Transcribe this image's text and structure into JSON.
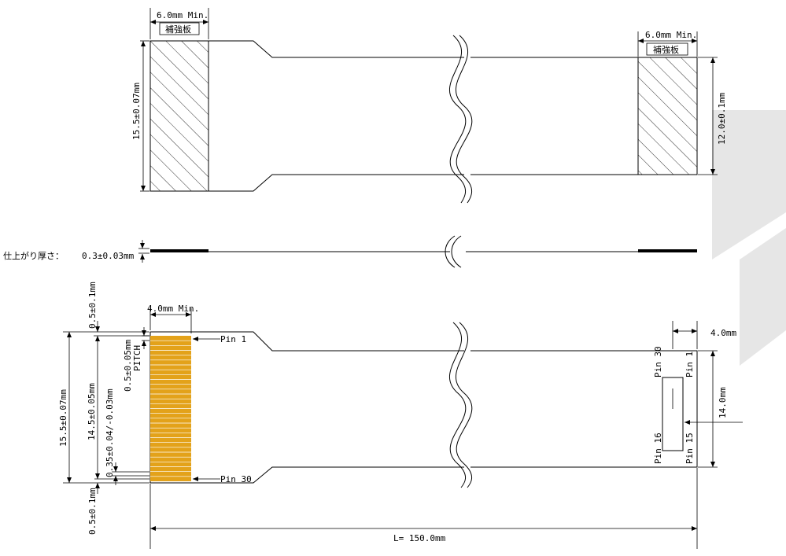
{
  "top_view": {
    "stiffener_left_width": "6.0mm Min.",
    "stiffener_left_label": "補強板",
    "stiffener_right_width": "6.0mm Min.",
    "stiffener_right_label": "補強板",
    "left_height": "15.5±0.07mm",
    "right_height": "12.0±0.1mm"
  },
  "side_view": {
    "thickness_label": "仕上がり厚さ：",
    "thickness_value": "0.3±0.03mm"
  },
  "bottom_view": {
    "contact_length": "4.0mm Min.",
    "pin_first": "Pin 1",
    "pin_last": "Pin 30",
    "pitch_value": "0.5±0.05mm",
    "pitch_label": "PITCH",
    "edge_top": "0.5±0.1mm",
    "edge_bottom": "0.5±0.1mm",
    "overall_width": "15.5±0.07mm",
    "contact_span": "14.5±0.05mm",
    "pin_width": "0.35±0.04/-0.03mm",
    "total_length": "L= 150.0mm",
    "window_offset": "4.0mm",
    "window_height": "14.0mm",
    "window_pin_30": "Pin 30",
    "window_pin_1": "Pin 1",
    "window_pin_16": "Pin 16",
    "window_pin_15": "Pin 15"
  }
}
